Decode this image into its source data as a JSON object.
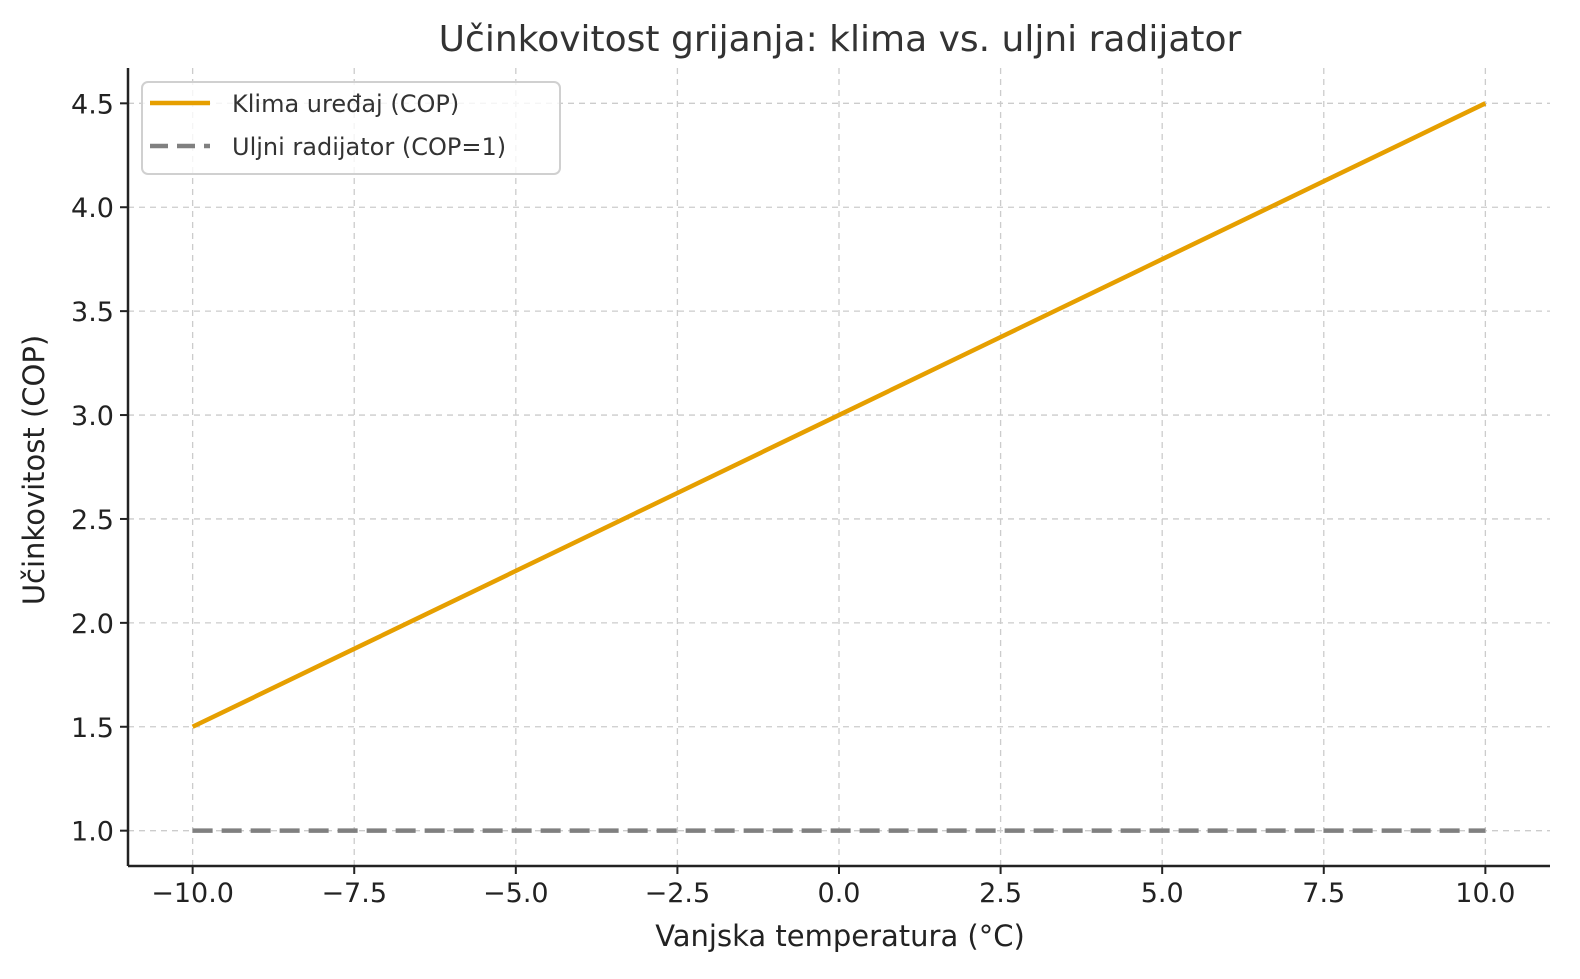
{
  "chart_data": {
    "type": "line",
    "title": "Učinkovitost grijanja: klima vs. uljni radijator",
    "xlabel": "Vanjska temperatura (°C)",
    "ylabel": "Učinkovitost (COP)",
    "xlim": [
      -11,
      11
    ],
    "ylim": [
      0.83,
      4.67
    ],
    "grid": true,
    "legend_position": "upper left",
    "x_ticks": [
      "−10.0",
      "−7.5",
      "−5.0",
      "−2.5",
      "0.0",
      "2.5",
      "5.0",
      "7.5",
      "10.0"
    ],
    "y_ticks": [
      "1.0",
      "1.5",
      "2.0",
      "2.5",
      "3.0",
      "3.5",
      "4.0",
      "4.5"
    ],
    "x": [
      -10,
      -7.5,
      -5,
      -2.5,
      0,
      2.5,
      5,
      7.5,
      10
    ],
    "series": [
      {
        "name": "Klima uređaj (COP)",
        "color": "#E69F00",
        "style": "solid",
        "values": [
          1.5,
          1.875,
          2.25,
          2.625,
          3.0,
          3.375,
          3.75,
          4.125,
          4.5
        ]
      },
      {
        "name": "Uljni radijator (COP=1)",
        "color": "#808080",
        "style": "dashed",
        "values": [
          1,
          1,
          1,
          1,
          1,
          1,
          1,
          1,
          1
        ]
      }
    ]
  }
}
